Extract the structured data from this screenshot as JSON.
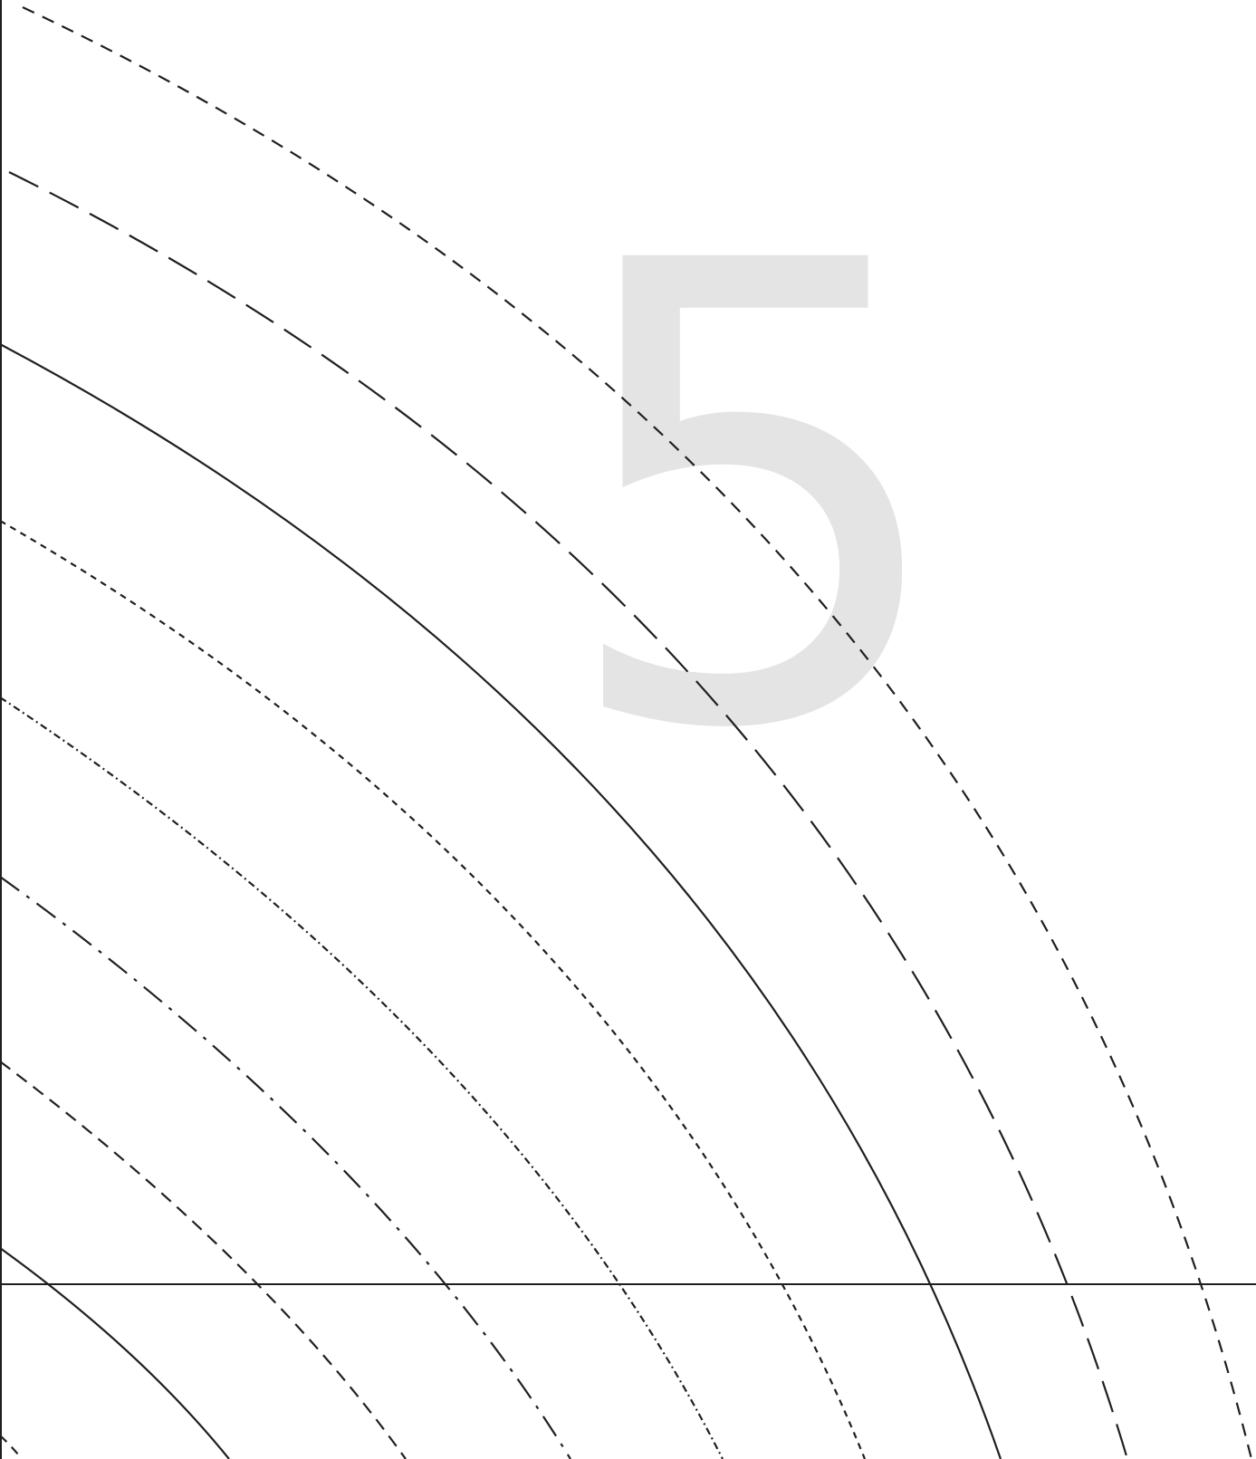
{
  "page": {
    "numeral": "5",
    "colors": {
      "background": "#ffffff",
      "line": "#1f1f1f",
      "numeral": "#e4e4e4"
    }
  },
  "arcs": [
    {
      "name": "arc-dashed-outer",
      "style": "dashed"
    },
    {
      "name": "arc-long-dash",
      "style": "long-dash"
    },
    {
      "name": "arc-solid-upper",
      "style": "solid"
    },
    {
      "name": "arc-short-dash",
      "style": "short-dash"
    },
    {
      "name": "arc-dash-dot-fine",
      "style": "dash-dot-fine"
    },
    {
      "name": "arc-dash-dot",
      "style": "dash-dot"
    },
    {
      "name": "arc-medium-dash",
      "style": "medium-dash"
    },
    {
      "name": "arc-solid-lower",
      "style": "solid"
    }
  ]
}
